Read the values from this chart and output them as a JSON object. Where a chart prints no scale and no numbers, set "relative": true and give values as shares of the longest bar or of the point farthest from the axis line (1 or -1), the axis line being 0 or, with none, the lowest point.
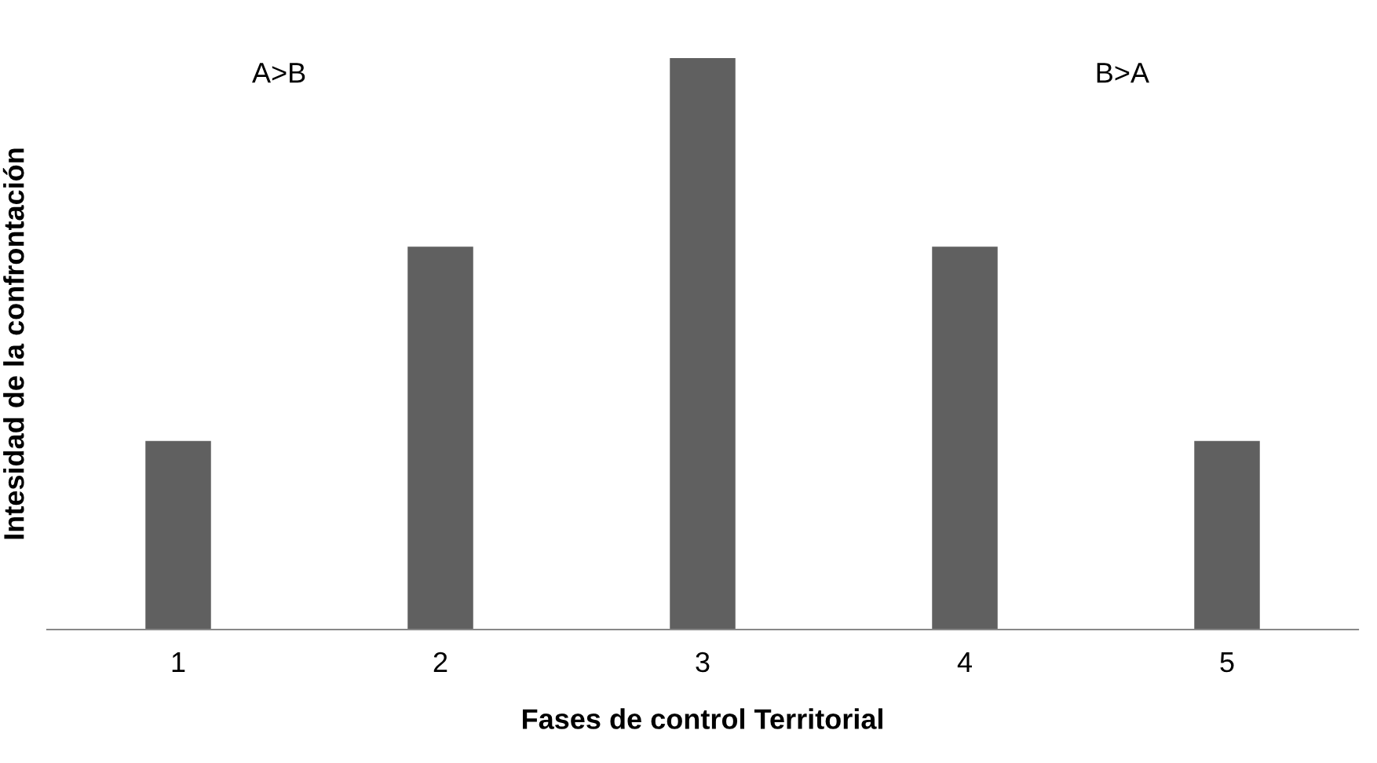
{
  "chart_data": {
    "type": "bar",
    "relative": true,
    "categories": [
      "1",
      "2",
      "3",
      "4",
      "5"
    ],
    "values": [
      0.33,
      0.67,
      1,
      0.67,
      0.33
    ],
    "color": "#606060",
    "xlabel": "Fases de control Territorial",
    "ylabel": "Intesidad de la confrontación",
    "annotations": [
      "A>B",
      "B>A"
    ],
    "grid": false,
    "legend": false
  }
}
